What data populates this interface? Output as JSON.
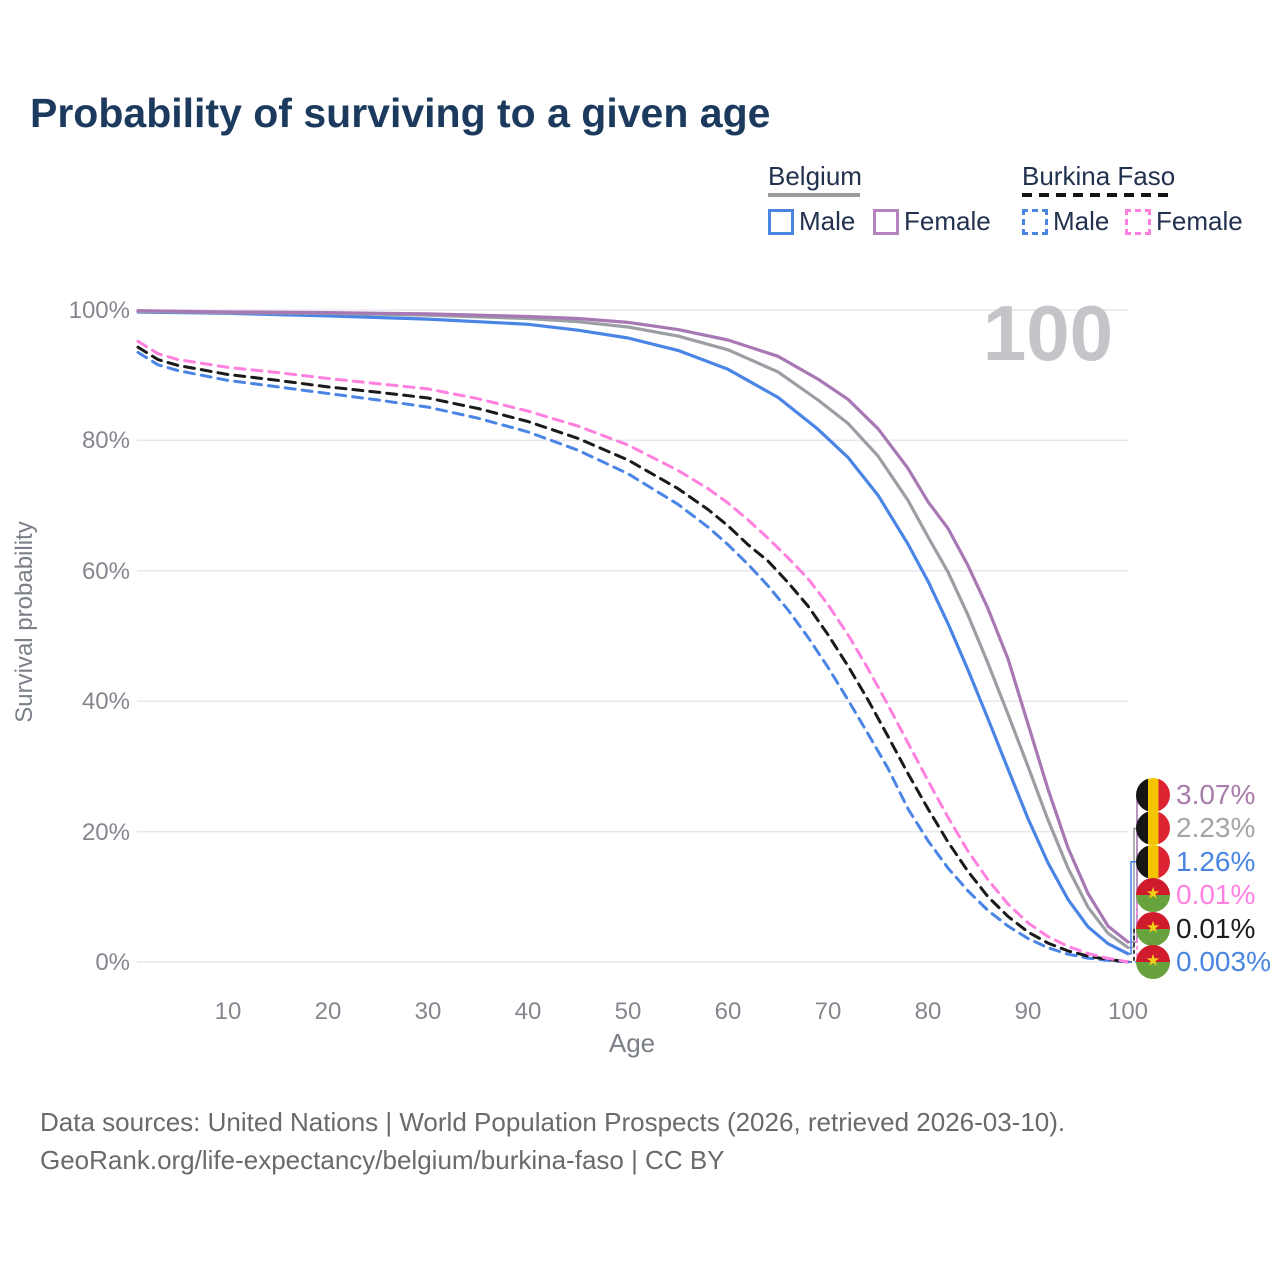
{
  "title": "Probability of surviving to a given age",
  "watermark_age": "100",
  "legend": {
    "groups": [
      {
        "name": "Belgium",
        "line_style": "solid",
        "underline_color": "#9b9b9b",
        "items": [
          {
            "label": "Male",
            "color": "#4a86e0",
            "dashed": false
          },
          {
            "label": "Female",
            "color": "#b583bd",
            "dashed": false
          }
        ]
      },
      {
        "name": "Burkina Faso",
        "line_style": "dashed",
        "underline_color": "#141414",
        "items": [
          {
            "label": "Male",
            "color": "#4a86e0",
            "dashed": true
          },
          {
            "label": "Female",
            "color": "#ff80df",
            "dashed": true
          }
        ]
      }
    ]
  },
  "chart_data": {
    "type": "line",
    "title": "Probability of surviving to a given age",
    "xlabel": "Age",
    "ylabel": "Survival probability",
    "xlim": [
      1,
      100
    ],
    "ylim": [
      0,
      100
    ],
    "grid": true,
    "x_ticks": [
      "10",
      "20",
      "30",
      "40",
      "50",
      "60",
      "70",
      "80",
      "90",
      "100"
    ],
    "x_tick_values": [
      10,
      20,
      30,
      40,
      50,
      60,
      70,
      80,
      90,
      100
    ],
    "y_ticks": [
      "0%",
      "20%",
      "40%",
      "60%",
      "80%",
      "100%"
    ],
    "y_tick_values": [
      0,
      20,
      40,
      60,
      80,
      100
    ],
    "legend_position": "top-right",
    "series": [
      {
        "name": "Belgium Female",
        "country": "Belgium",
        "sex": "Female",
        "color": "#a878b4",
        "dashed": false,
        "end_label": "3.07%",
        "end_label_color": "#a87cab",
        "flag": "belgium",
        "points": [
          [
            1,
            99.9
          ],
          [
            10,
            99.7
          ],
          [
            20,
            99.6
          ],
          [
            30,
            99.4
          ],
          [
            40,
            99.0
          ],
          [
            45,
            98.7
          ],
          [
            50,
            98.1
          ],
          [
            55,
            97.0
          ],
          [
            60,
            95.4
          ],
          [
            65,
            92.9
          ],
          [
            69,
            89.4
          ],
          [
            72,
            86.3
          ],
          [
            75,
            81.8
          ],
          [
            78,
            75.7
          ],
          [
            80,
            70.6
          ],
          [
            82,
            66.5
          ],
          [
            84,
            60.8
          ],
          [
            86,
            54.2
          ],
          [
            88,
            46.5
          ],
          [
            90,
            36.5
          ],
          [
            92,
            26.5
          ],
          [
            94,
            17.5
          ],
          [
            96,
            10.5
          ],
          [
            98,
            5.5
          ],
          [
            100,
            3.07
          ]
        ]
      },
      {
        "name": "Belgium Both sexes",
        "country": "Belgium",
        "sex": "Both",
        "color": "#9b9ea3",
        "dashed": false,
        "end_label": "2.23%",
        "end_label_color": "#a5a5a8",
        "flag": "belgium",
        "points": [
          [
            1,
            99.8
          ],
          [
            10,
            99.6
          ],
          [
            20,
            99.5
          ],
          [
            30,
            99.2
          ],
          [
            40,
            98.7
          ],
          [
            45,
            98.2
          ],
          [
            50,
            97.4
          ],
          [
            55,
            96.0
          ],
          [
            60,
            93.9
          ],
          [
            65,
            90.5
          ],
          [
            69,
            86.2
          ],
          [
            72,
            82.6
          ],
          [
            75,
            77.6
          ],
          [
            78,
            70.8
          ],
          [
            80,
            65.2
          ],
          [
            82,
            59.8
          ],
          [
            84,
            53.2
          ],
          [
            86,
            45.8
          ],
          [
            88,
            38.0
          ],
          [
            90,
            30.0
          ],
          [
            92,
            21.8
          ],
          [
            94,
            14.4
          ],
          [
            96,
            8.4
          ],
          [
            98,
            4.4
          ],
          [
            100,
            2.23
          ]
        ]
      },
      {
        "name": "Belgium Male",
        "country": "Belgium",
        "sex": "Male",
        "color": "#4a85e6",
        "dashed": false,
        "end_label": "1.26%",
        "end_label_color": "#4a86e0",
        "flag": "belgium",
        "points": [
          [
            1,
            99.7
          ],
          [
            10,
            99.5
          ],
          [
            20,
            99.1
          ],
          [
            30,
            98.6
          ],
          [
            40,
            97.8
          ],
          [
            45,
            96.9
          ],
          [
            50,
            95.7
          ],
          [
            55,
            93.8
          ],
          [
            60,
            90.9
          ],
          [
            65,
            86.6
          ],
          [
            69,
            81.7
          ],
          [
            72,
            77.4
          ],
          [
            75,
            71.6
          ],
          [
            78,
            64.1
          ],
          [
            80,
            58.4
          ],
          [
            82,
            51.9
          ],
          [
            84,
            44.8
          ],
          [
            86,
            37.3
          ],
          [
            88,
            29.6
          ],
          [
            90,
            22.0
          ],
          [
            92,
            15.2
          ],
          [
            94,
            9.6
          ],
          [
            96,
            5.4
          ],
          [
            98,
            2.8
          ],
          [
            100,
            1.26
          ]
        ]
      },
      {
        "name": "Burkina Faso Female",
        "country": "Burkina Faso",
        "sex": "Female",
        "color": "#ff80df",
        "dashed": true,
        "end_label": "0.01%",
        "end_label_color": "#ff82e2",
        "flag": "burkina",
        "points": [
          [
            1,
            95.2
          ],
          [
            3,
            93.3
          ],
          [
            5,
            92.4
          ],
          [
            10,
            91.2
          ],
          [
            15,
            90.4
          ],
          [
            20,
            89.5
          ],
          [
            25,
            88.7
          ],
          [
            30,
            87.9
          ],
          [
            35,
            86.4
          ],
          [
            40,
            84.5
          ],
          [
            45,
            82.2
          ],
          [
            50,
            79.3
          ],
          [
            55,
            75.4
          ],
          [
            58,
            72.6
          ],
          [
            60,
            70.4
          ],
          [
            62,
            67.8
          ],
          [
            64,
            65.0
          ],
          [
            66,
            62.0
          ],
          [
            68,
            58.8
          ],
          [
            70,
            54.8
          ],
          [
            72,
            50.2
          ],
          [
            74,
            45.0
          ],
          [
            76,
            39.4
          ],
          [
            78,
            33.6
          ],
          [
            80,
            27.8
          ],
          [
            82,
            22.2
          ],
          [
            84,
            17.0
          ],
          [
            86,
            12.6
          ],
          [
            88,
            8.9
          ],
          [
            90,
            6.0
          ],
          [
            92,
            3.9
          ],
          [
            94,
            2.4
          ],
          [
            96,
            1.3
          ],
          [
            98,
            0.55
          ],
          [
            100,
            0.01
          ]
        ]
      },
      {
        "name": "Burkina Faso Both sexes",
        "country": "Burkina Faso",
        "sex": "Both",
        "color": "#1a1a1a",
        "dashed": true,
        "end_label": "0.01%",
        "end_label_color": "#1c1c1c",
        "flag": "burkina",
        "points": [
          [
            1,
            94.3
          ],
          [
            3,
            92.4
          ],
          [
            5,
            91.5
          ],
          [
            10,
            90.1
          ],
          [
            15,
            89.2
          ],
          [
            20,
            88.2
          ],
          [
            25,
            87.4
          ],
          [
            30,
            86.5
          ],
          [
            35,
            84.9
          ],
          [
            40,
            82.9
          ],
          [
            45,
            80.3
          ],
          [
            50,
            77.0
          ],
          [
            55,
            72.6
          ],
          [
            58,
            69.4
          ],
          [
            60,
            66.9
          ],
          [
            62,
            64.0
          ],
          [
            64,
            61.5
          ],
          [
            66,
            58.2
          ],
          [
            68,
            54.6
          ],
          [
            70,
            50.2
          ],
          [
            72,
            45.4
          ],
          [
            74,
            40.2
          ],
          [
            76,
            34.6
          ],
          [
            78,
            28.9
          ],
          [
            80,
            23.5
          ],
          [
            82,
            18.4
          ],
          [
            84,
            13.9
          ],
          [
            86,
            10.0
          ],
          [
            88,
            7.0
          ],
          [
            90,
            4.6
          ],
          [
            92,
            2.9
          ],
          [
            94,
            1.7
          ],
          [
            96,
            0.9
          ],
          [
            98,
            0.4
          ],
          [
            100,
            0.01
          ]
        ]
      },
      {
        "name": "Burkina Faso Male",
        "country": "Burkina Faso",
        "sex": "Male",
        "color": "#4a85e6",
        "dashed": true,
        "end_label": "0.003%",
        "end_label_color": "#4a86e0",
        "flag": "burkina",
        "points": [
          [
            1,
            93.5
          ],
          [
            3,
            91.6
          ],
          [
            5,
            90.7
          ],
          [
            10,
            89.2
          ],
          [
            15,
            88.2
          ],
          [
            20,
            87.2
          ],
          [
            25,
            86.2
          ],
          [
            30,
            85.1
          ],
          [
            35,
            83.4
          ],
          [
            40,
            81.3
          ],
          [
            45,
            78.5
          ],
          [
            50,
            74.9
          ],
          [
            55,
            70.2
          ],
          [
            58,
            66.7
          ],
          [
            60,
            64.0
          ],
          [
            62,
            61.0
          ],
          [
            64,
            57.7
          ],
          [
            66,
            54.0
          ],
          [
            68,
            49.8
          ],
          [
            70,
            45.2
          ],
          [
            72,
            40.2
          ],
          [
            74,
            35.0
          ],
          [
            76,
            29.7
          ],
          [
            78,
            23.5
          ],
          [
            80,
            18.6
          ],
          [
            82,
            14.4
          ],
          [
            84,
            10.9
          ],
          [
            86,
            7.9
          ],
          [
            88,
            5.5
          ],
          [
            90,
            3.6
          ],
          [
            92,
            2.2
          ],
          [
            94,
            1.2
          ],
          [
            96,
            0.6
          ],
          [
            98,
            0.25
          ],
          [
            100,
            0.003
          ]
        ]
      }
    ]
  },
  "footer": {
    "line1": "Data sources: United Nations | World Population Prospects (2026, retrieved 2026-03-10).",
    "line2": "GeoRank.org/life-expectancy/belgium/burkina-faso | CC BY"
  }
}
